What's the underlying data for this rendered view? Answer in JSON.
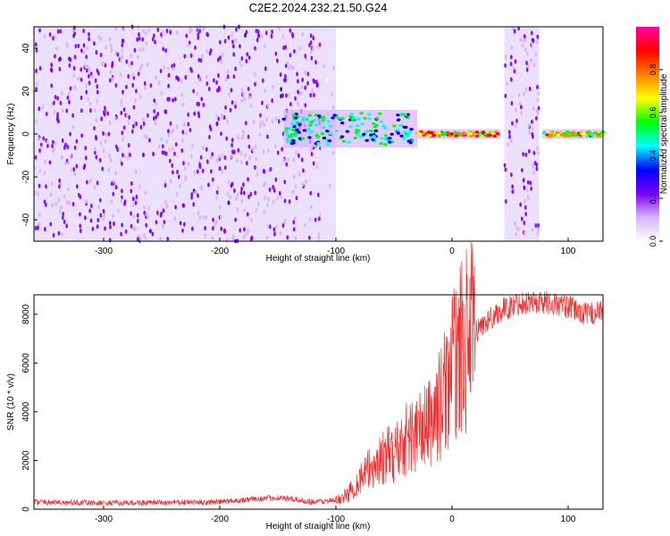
{
  "title": "C2E2.2024.232.21.50.G24",
  "chart_data": [
    {
      "type": "heatmap",
      "xlabel": "Height of straight line (km)",
      "ylabel": "Frequency (Hz)",
      "xlim": [
        -360,
        130
      ],
      "ylim": [
        -50,
        50
      ],
      "x_ticks": [
        -300,
        -200,
        -100,
        0,
        100
      ],
      "x_tick_labels": [
        "-300",
        "-200",
        "-100",
        "0",
        "100"
      ],
      "y_ticks": [
        -40,
        -20,
        0,
        20,
        40
      ],
      "y_tick_labels": [
        "-40",
        "-20",
        "0",
        "20",
        "40"
      ],
      "colorbar": {
        "label": "Normalized spectral amplitude",
        "range": [
          0,
          1
        ],
        "ticks": [
          0,
          0.2,
          0.4,
          0.6,
          0.8
        ],
        "tick_labels": [
          "0.0",
          "0.2",
          "0.4",
          "0.6",
          "0.8"
        ],
        "colormap": [
          "#ffffff",
          "#d9b3ff",
          "#7b00ff",
          "#0000ff",
          "#00ffff",
          "#00ff00",
          "#ffff00",
          "#ff8000",
          "#ff0000",
          "#ff00a0"
        ]
      },
      "features": [
        {
          "region": "noise",
          "x": [
            -360,
            -113
          ],
          "freq": [
            -50,
            50
          ],
          "amplitude": 0.2
        },
        {
          "region": "noise_sparse",
          "x": [
            -113,
            -100
          ],
          "freq": [
            -50,
            50
          ],
          "amplitude": 0.1
        },
        {
          "region": "tone",
          "x": [
            -145,
            -30
          ],
          "freq": [
            -5,
            10
          ],
          "amplitude": 0.5
        },
        {
          "region": "tone",
          "x": [
            -30,
            42
          ],
          "freq": [
            -1,
            1
          ],
          "amplitude": 0.8
        },
        {
          "region": "noise_band",
          "x": [
            45,
            75
          ],
          "freq": [
            -50,
            50
          ],
          "amplitude": 0.2
        },
        {
          "region": "tone",
          "x": [
            78,
            130
          ],
          "freq": [
            -1,
            1
          ],
          "amplitude": 0.75
        }
      ]
    },
    {
      "type": "line",
      "xlabel": "Height of straight line (km)",
      "ylabel": "SNR (10 * v/v)",
      "xlim": [
        -360,
        130
      ],
      "ylim": [
        0,
        8800
      ],
      "x_ticks": [
        -300,
        -200,
        -100,
        0,
        100
      ],
      "x_tick_labels": [
        "-300",
        "-200",
        "-100",
        "0",
        "100"
      ],
      "y_ticks": [
        0,
        2000,
        4000,
        6000,
        8000
      ],
      "y_tick_labels": [
        "0",
        "2000",
        "4000",
        "6000",
        "8000"
      ],
      "series": [
        {
          "color": "#ee3030",
          "x": [
            -360,
            -300,
            -250,
            -200,
            -170,
            -150,
            -120,
            -100,
            -90,
            -80,
            -70,
            -60,
            -50,
            -40,
            -30,
            -20,
            -10,
            0,
            10,
            20,
            30,
            40,
            60,
            80,
            100,
            115,
            130
          ],
          "y": [
            300,
            250,
            270,
            300,
            420,
            480,
            300,
            350,
            600,
            1200,
            1700,
            2100,
            2300,
            2900,
            3100,
            3500,
            4300,
            5800,
            6800,
            7300,
            7700,
            8100,
            8500,
            8500,
            8300,
            8000,
            8100
          ]
        }
      ]
    }
  ]
}
